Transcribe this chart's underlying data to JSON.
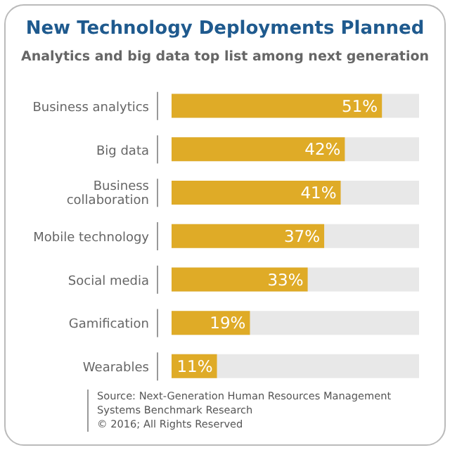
{
  "chart_data": {
    "type": "bar",
    "orientation": "horizontal",
    "title": "New Technology Deployments Planned",
    "subtitle": "Analytics and big data top list among next generation",
    "categories": [
      "Business analytics",
      "Big data",
      "Business collaboration",
      "Mobile technology",
      "Social media",
      "Gamification",
      "Wearables"
    ],
    "values": [
      51,
      42,
      41,
      37,
      33,
      19,
      11
    ],
    "color": "#dfab27",
    "value_labels": [
      "51%",
      "42%",
      "41%",
      "37%",
      "33%",
      "19%",
      "11%"
    ],
    "xlim": [
      0,
      60
    ],
    "tick_labels": "y",
    "annotations": [
      "Source: Next-Generation Human Resources Management Systems Benchmark Research",
      "© 2016; All Rights Reserved"
    ]
  }
}
